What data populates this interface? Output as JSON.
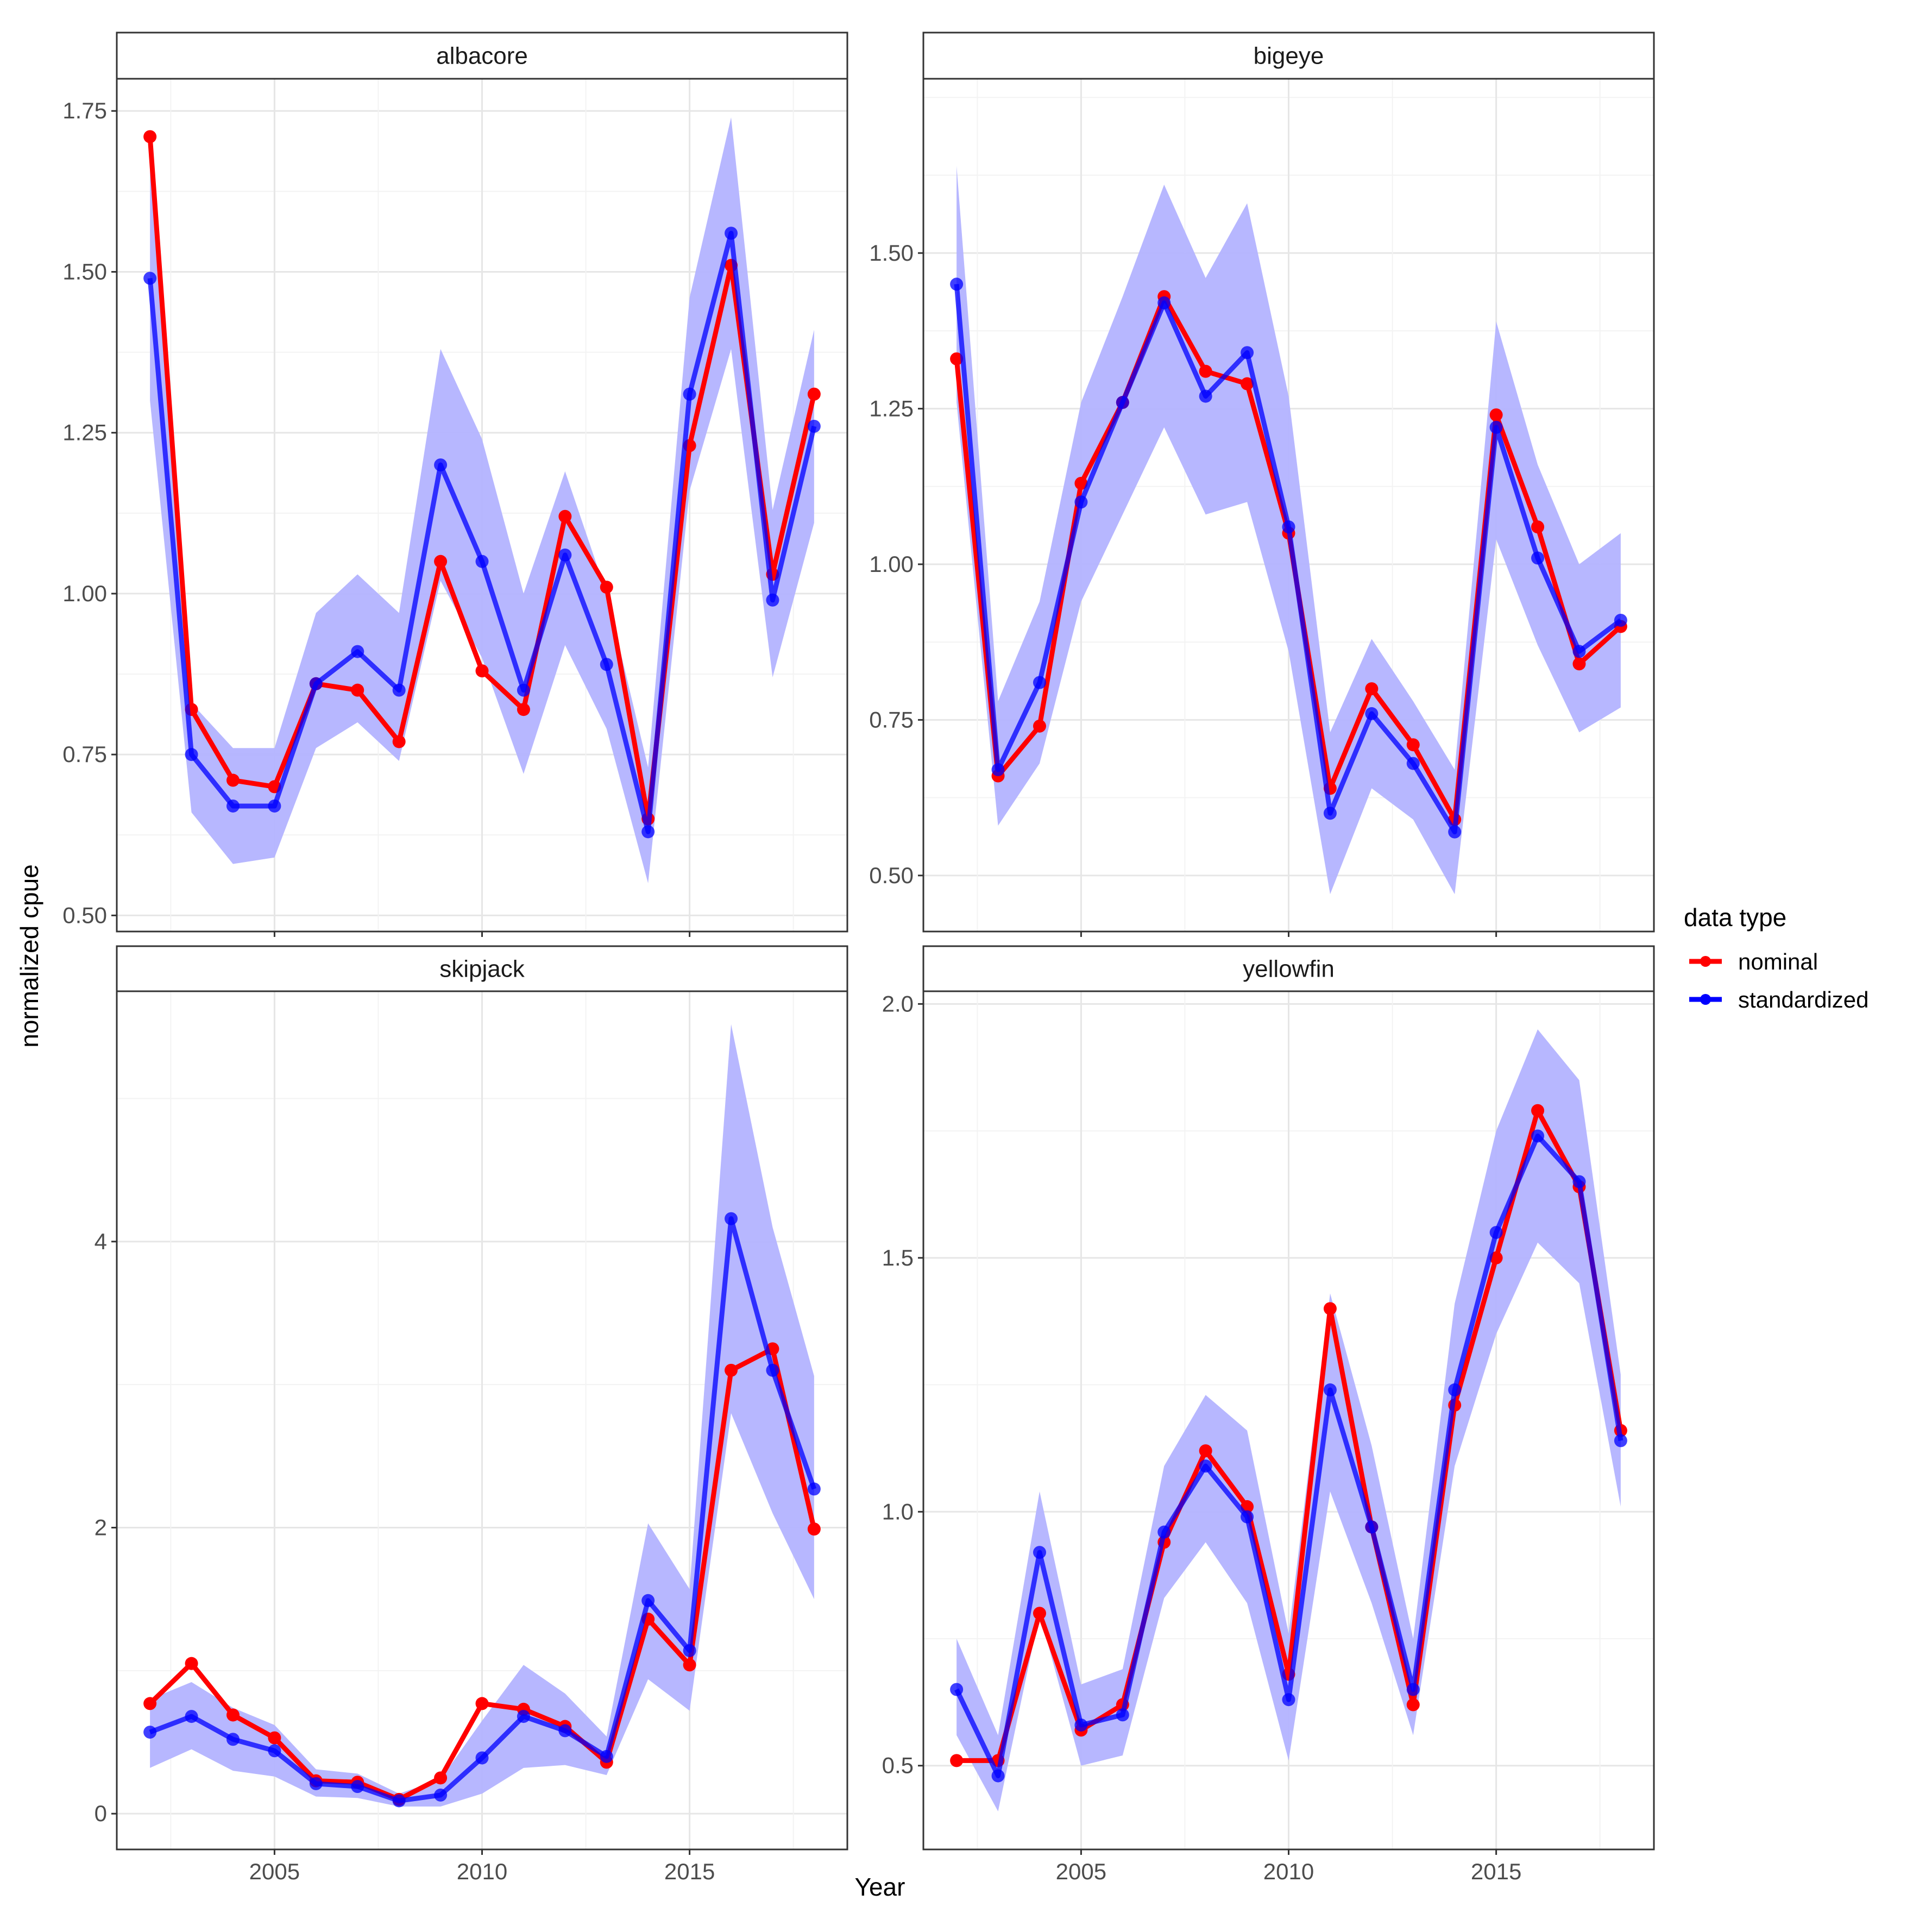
{
  "chart_data": {
    "type": "line",
    "xlabel": "Year",
    "ylabel": "normalized cpue",
    "legend": {
      "title": "data type",
      "position": "right",
      "entries": [
        {
          "name": "nominal",
          "color": "#ff0000"
        },
        {
          "name": "standardized",
          "color": "#0000ff"
        }
      ]
    },
    "colors": {
      "nominal": "#ff0000",
      "standardized": "#0000ff",
      "band": "#b3b3ff"
    },
    "x_ticks": [
      2005,
      2010,
      2015
    ],
    "xlim": [
      2001.2,
      2018.8
    ],
    "panels": [
      {
        "name": "albacore",
        "ylim": [
          0.475,
          1.8
        ],
        "y_ticks": [
          "0.50",
          "0.75",
          "1.00",
          "1.25",
          "1.50",
          "1.75"
        ],
        "x": [
          2002,
          2003,
          2004,
          2005,
          2006,
          2007,
          2008,
          2009,
          2010,
          2011,
          2012,
          2013,
          2014,
          2015,
          2016,
          2017,
          2018
        ],
        "nominal": [
          1.71,
          0.82,
          0.71,
          0.7,
          0.86,
          0.85,
          0.77,
          1.05,
          0.88,
          0.82,
          1.12,
          1.01,
          0.65,
          1.23,
          1.51,
          1.03,
          1.31
        ],
        "standardized": [
          1.49,
          0.75,
          0.67,
          0.67,
          0.86,
          0.91,
          0.85,
          1.2,
          1.05,
          0.85,
          1.06,
          0.89,
          0.63,
          1.31,
          1.56,
          0.99,
          1.26
        ],
        "lower": [
          1.3,
          0.66,
          0.58,
          0.59,
          0.76,
          0.8,
          0.74,
          1.02,
          0.9,
          0.72,
          0.92,
          0.79,
          0.55,
          1.16,
          1.38,
          0.87,
          1.11
        ],
        "upper": [
          1.66,
          0.83,
          0.76,
          0.76,
          0.97,
          1.03,
          0.97,
          1.38,
          1.24,
          1.0,
          1.19,
          1.0,
          0.73,
          1.46,
          1.74,
          1.13,
          1.41
        ]
      },
      {
        "name": "bigeye",
        "ylim": [
          0.41,
          1.78
        ],
        "y_ticks": [
          "0.50",
          "0.75",
          "1.00",
          "1.25",
          "1.50"
        ],
        "x": [
          2002,
          2003,
          2004,
          2005,
          2006,
          2007,
          2008,
          2009,
          2010,
          2011,
          2012,
          2013,
          2014,
          2015,
          2016,
          2017,
          2018
        ],
        "nominal": [
          1.33,
          0.66,
          0.74,
          1.13,
          1.26,
          1.43,
          1.31,
          1.29,
          1.05,
          0.64,
          0.8,
          0.71,
          0.59,
          1.24,
          1.06,
          0.84,
          0.9
        ],
        "standardized": [
          1.45,
          0.67,
          0.81,
          1.1,
          1.26,
          1.42,
          1.27,
          1.34,
          1.06,
          0.6,
          0.76,
          0.68,
          0.57,
          1.22,
          1.01,
          0.86,
          0.91
        ],
        "lower": [
          1.26,
          0.58,
          0.68,
          0.94,
          1.08,
          1.22,
          1.08,
          1.1,
          0.86,
          0.47,
          0.64,
          0.59,
          0.47,
          1.04,
          0.87,
          0.73,
          0.77
        ],
        "upper": [
          1.64,
          0.78,
          0.94,
          1.26,
          1.43,
          1.61,
          1.46,
          1.58,
          1.27,
          0.73,
          0.88,
          0.78,
          0.67,
          1.39,
          1.16,
          1.0,
          1.05
        ]
      },
      {
        "name": "skipjack",
        "ylim": [
          -0.25,
          5.75
        ],
        "y_ticks": [
          "0",
          "2",
          "4"
        ],
        "x": [
          2002,
          2003,
          2004,
          2005,
          2006,
          2007,
          2008,
          2009,
          2010,
          2011,
          2012,
          2013,
          2014,
          2015,
          2016,
          2017,
          2018
        ],
        "nominal": [
          0.77,
          1.05,
          0.69,
          0.53,
          0.23,
          0.22,
          0.1,
          0.25,
          0.77,
          0.73,
          0.61,
          0.36,
          1.36,
          1.04,
          3.1,
          3.25,
          1.99
        ],
        "standardized": [
          0.57,
          0.68,
          0.52,
          0.44,
          0.21,
          0.19,
          0.09,
          0.13,
          0.39,
          0.68,
          0.58,
          0.4,
          1.49,
          1.14,
          4.16,
          3.1,
          2.27
        ],
        "lower": [
          0.32,
          0.45,
          0.3,
          0.26,
          0.12,
          0.11,
          0.05,
          0.05,
          0.14,
          0.32,
          0.34,
          0.27,
          0.94,
          0.72,
          2.8,
          2.1,
          1.5
        ],
        "upper": [
          0.8,
          0.92,
          0.74,
          0.62,
          0.31,
          0.28,
          0.14,
          0.24,
          0.65,
          1.04,
          0.84,
          0.54,
          2.03,
          1.57,
          5.52,
          4.1,
          3.06
        ]
      },
      {
        "name": "yellowfin",
        "ylim": [
          0.335,
          2.025
        ],
        "y_ticks": [
          "0.5",
          "1.0",
          "1.5",
          "2.0"
        ],
        "x": [
          2002,
          2003,
          2004,
          2005,
          2006,
          2007,
          2008,
          2009,
          2010,
          2011,
          2012,
          2013,
          2014,
          2015,
          2016,
          2017,
          2018
        ],
        "nominal": [
          0.51,
          0.51,
          0.8,
          0.57,
          0.62,
          0.94,
          1.12,
          1.01,
          0.68,
          1.4,
          0.97,
          0.62,
          1.21,
          1.5,
          1.79,
          1.64,
          1.16
        ],
        "standardized": [
          0.65,
          0.48,
          0.92,
          0.58,
          0.6,
          0.96,
          1.09,
          0.99,
          0.63,
          1.24,
          0.97,
          0.65,
          1.24,
          1.55,
          1.74,
          1.65,
          1.14
        ],
        "lower": [
          0.56,
          0.41,
          0.8,
          0.5,
          0.52,
          0.83,
          0.94,
          0.82,
          0.51,
          1.04,
          0.82,
          0.56,
          1.09,
          1.35,
          1.53,
          1.45,
          1.01
        ],
        "upper": [
          0.75,
          0.56,
          1.04,
          0.66,
          0.69,
          1.09,
          1.23,
          1.16,
          0.76,
          1.43,
          1.13,
          0.75,
          1.41,
          1.75,
          1.95,
          1.85,
          1.27
        ]
      }
    ]
  }
}
